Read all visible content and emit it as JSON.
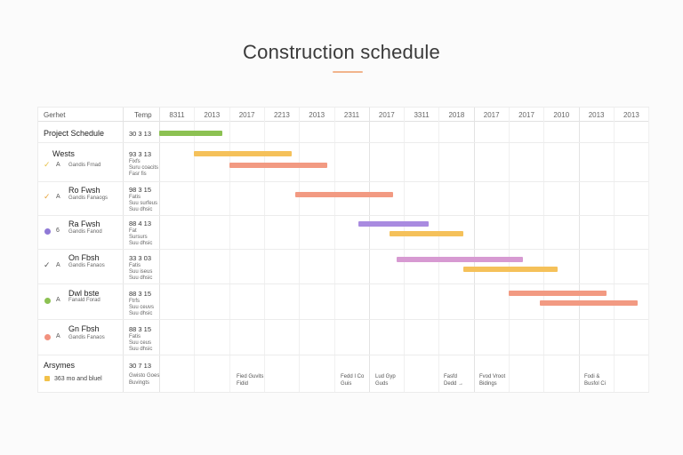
{
  "title": "Construction schedule",
  "columns": {
    "name": "Gerhet",
    "time": "Temp",
    "dates": [
      "8311",
      "2013",
      "2017",
      "2213",
      "2013",
      "2311",
      "2017",
      "3311",
      "2018",
      "2017",
      "2017",
      "2010",
      "2013",
      "2013"
    ]
  },
  "project": {
    "label": "Project Schedule",
    "time": "30 3 13"
  },
  "phases": [
    {
      "name": "Wests",
      "sub": "Gandis Frnad",
      "time": "93 3 13",
      "tsub": [
        "Fixfs",
        "Suru coacits",
        "Fasr fis"
      ],
      "icon": "check-icon",
      "mini": "A",
      "color": "#e8c24a"
    },
    {
      "name": "Ro Fwsh",
      "sub": "Gandis Fanaogs",
      "time": "98 3 15",
      "tsub": [
        "Fatis",
        "Suu surfeus",
        "Suu dhsic"
      ],
      "icon": "check-icon",
      "mini": "A",
      "color": "#e8a53a"
    },
    {
      "name": "Ra Fwsh",
      "sub": "Gandis Fanod",
      "time": "88 4 13",
      "tsub": [
        "Fat",
        "Sursurs",
        "Suu dhsic"
      ],
      "icon": "circle-icon",
      "mini": "6",
      "color": "#8f79d6"
    },
    {
      "name": "On Fbsh",
      "sub": "Gandis Fanaos",
      "time": "33 3 03",
      "tsub": [
        "Fatis",
        "Suu iseus",
        "Suu dhsic"
      ],
      "icon": "check-icon",
      "mini": "A",
      "color": "#555555"
    },
    {
      "name": "Dwl bste",
      "sub": "Fanald Forad",
      "time": "88 3 15",
      "tsub": [
        "Ftrfs",
        "Suu ceuvs",
        "Suu dhsic"
      ],
      "icon": "circle-icon",
      "mini": "A",
      "color": "#8cc152"
    },
    {
      "name": "Gn Fbsh",
      "sub": "Gandis Fanaos",
      "time": "88 3 15",
      "tsub": [
        "Fatis",
        "Suu ceus",
        "Suu dhsic"
      ],
      "icon": "circle-icon",
      "mini": "A",
      "color": "#f2917e"
    }
  ],
  "footer": {
    "label": "Arsymes",
    "legend_text": "363 mo and bluel",
    "time": "30 7 13",
    "tsub": [
      "Gwisto Goes",
      "Buvingts"
    ],
    "notes": [
      [
        "Fied Guvits",
        "Fidid"
      ],
      [
        "Fedd I Co",
        "Guis"
      ],
      [
        "Lud Gyp",
        "Guds"
      ],
      [
        "Fasfd",
        "Dedd →"
      ],
      [
        "Fvod Vroot",
        "Bidings"
      ],
      [
        "Fodi &",
        "Busfol Ci"
      ]
    ]
  },
  "chart_data": {
    "type": "gantt",
    "title": "Construction schedule",
    "timeline_columns": [
      "8311",
      "2013",
      "2017",
      "2213",
      "2013",
      "2311",
      "2017",
      "3311",
      "2018",
      "2017",
      "2017",
      "2010",
      "2013",
      "2013"
    ],
    "tasks": [
      {
        "row": "Project Schedule",
        "start": 0.0,
        "end": 1.8,
        "color": "#8cc152"
      },
      {
        "row": "Wests",
        "start": 1.0,
        "end": 3.8,
        "color": "#f5c15a"
      },
      {
        "row": "Wests",
        "start": 2.0,
        "end": 4.8,
        "color": "#f29a82"
      },
      {
        "row": "Ro Fwsh",
        "start": 3.9,
        "end": 6.7,
        "color": "#f29a82"
      },
      {
        "row": "Ra Fwsh",
        "start": 5.7,
        "end": 7.7,
        "color": "#a98be0"
      },
      {
        "row": "Ra Fwsh",
        "start": 6.6,
        "end": 8.7,
        "color": "#f5c15a"
      },
      {
        "row": "On Fbsh",
        "start": 6.8,
        "end": 10.4,
        "color": "#d79ad2"
      },
      {
        "row": "On Fbsh",
        "start": 8.7,
        "end": 11.4,
        "color": "#f5c15a"
      },
      {
        "row": "Dwl bste",
        "start": 10.0,
        "end": 12.8,
        "color": "#f29a82"
      },
      {
        "row": "Dwl bste",
        "start": 10.9,
        "end": 13.7,
        "color": "#f29a82"
      }
    ]
  }
}
